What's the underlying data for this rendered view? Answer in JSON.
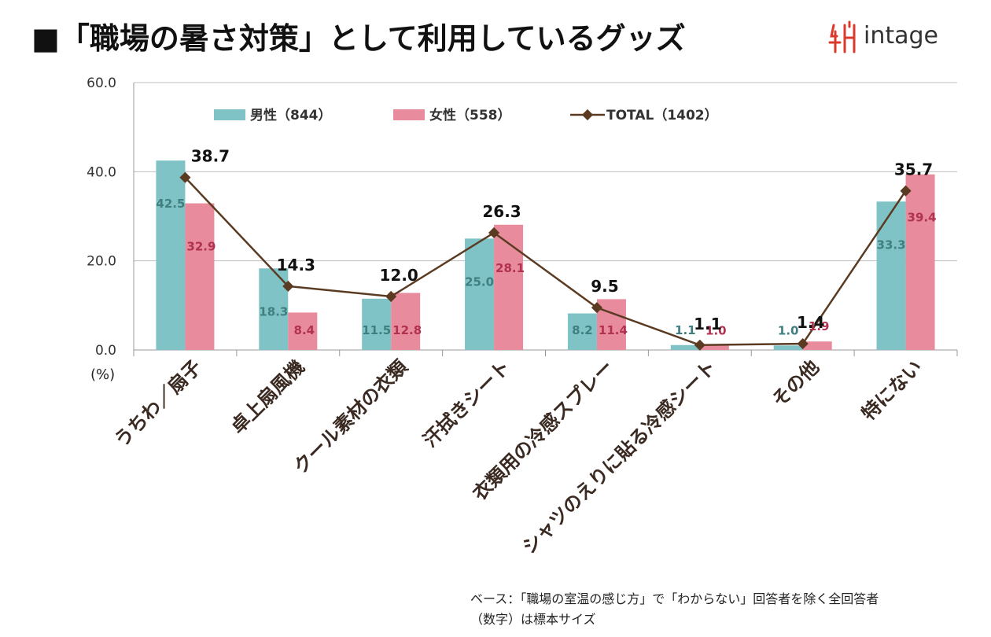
{
  "header": {
    "title": "■「職場の暑さ対策」として利用しているグッズ",
    "logo_text": "intage"
  },
  "chart_data": {
    "type": "bar",
    "ylim": [
      0,
      60
    ],
    "yticks": [
      "0.0",
      "20.0",
      "40.0",
      "60.0"
    ],
    "unit_label": "(%)",
    "categories": [
      "うちわ／扇子",
      "卓上扇風機",
      "クール素材の衣類",
      "汗拭きシート",
      "衣類用の冷感スプレー",
      "シャツのえりに貼る冷感シート",
      "その他",
      "特にない"
    ],
    "series": [
      {
        "name": "男性（844）",
        "kind": "bar",
        "color": "#7fc3c6",
        "values": [
          42.5,
          18.3,
          11.5,
          25.0,
          8.2,
          1.1,
          1.0,
          33.3
        ],
        "labels": [
          "42.5",
          "18.3",
          "11.5",
          "25.0",
          "8.2",
          "1.1",
          "1.0",
          "33.3"
        ]
      },
      {
        "name": "女性（558）",
        "kind": "bar",
        "color": "#e88b9c",
        "values": [
          32.9,
          8.4,
          12.8,
          28.1,
          11.4,
          1.0,
          1.9,
          39.4
        ],
        "labels": [
          "32.9",
          "8.4",
          "12.8",
          "28.1",
          "11.4",
          "1.0",
          "1.9",
          "39.4"
        ]
      },
      {
        "name": "TOTAL（1402）",
        "kind": "line",
        "color": "#5a3b22",
        "values": [
          38.7,
          14.3,
          12.0,
          26.3,
          9.5,
          1.1,
          1.4,
          35.7
        ],
        "labels": [
          "38.7",
          "14.3",
          "12.0",
          "26.3",
          "9.5",
          "1.1",
          "1.4",
          "35.7"
        ]
      }
    ],
    "legend_position": "top",
    "grid": true
  },
  "notes": {
    "line1": "ベース：「職場の室温の感じ方」で「わからない」回答者を除く全回答者",
    "line2": "（数字）は標本サイズ"
  }
}
